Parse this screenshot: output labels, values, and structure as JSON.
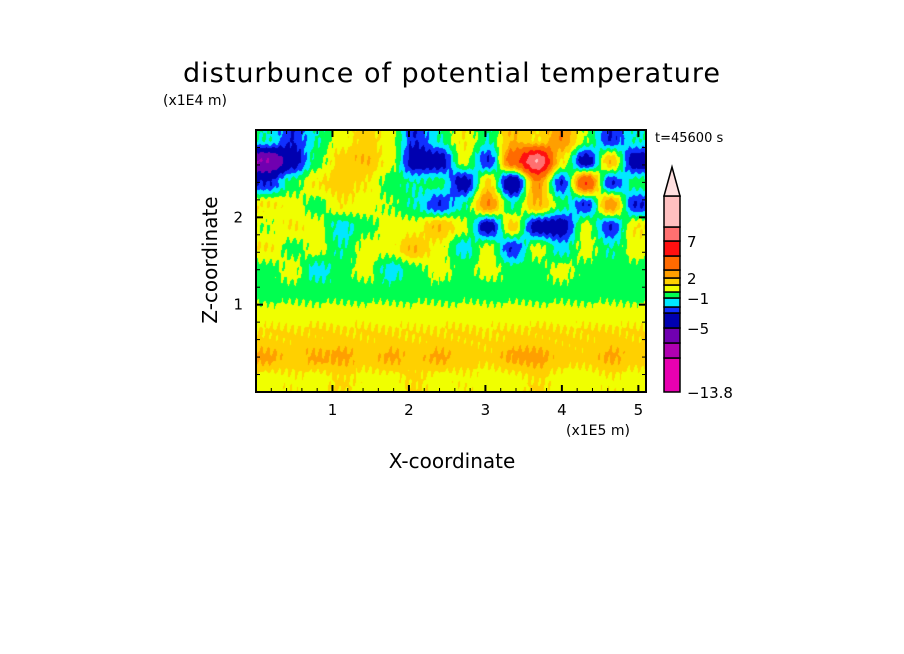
{
  "chart_data": {
    "type": "heatmap",
    "title": "disturbunce of potential temperature",
    "xlabel": "X-coordinate",
    "ylabel": "Z-coordinate",
    "x_unit": "(x1E5 m)",
    "y_unit": "(x1E4 m)",
    "annotation": "t=45600 s",
    "xlim": [
      0,
      5.1
    ],
    "ylim": [
      0,
      3.0
    ],
    "x_ticks": [
      1,
      2,
      3,
      4,
      5
    ],
    "y_ticks": [
      1,
      2
    ],
    "x_tick_labels": [
      "1",
      "2",
      "3",
      "4",
      "5"
    ],
    "y_tick_labels": [
      "1",
      "2"
    ],
    "colorbar": {
      "levels": [
        -13.8,
        -9,
        -7,
        -5,
        -3,
        -2,
        -1,
        0,
        1,
        2,
        3,
        5,
        7,
        9
      ],
      "colors": [
        "#e800b0",
        "#b000b0",
        "#7000b0",
        "#0000b0",
        "#1030ff",
        "#00e8ff",
        "#00ff50",
        "#f0ff00",
        "#ffd000",
        "#ff9f00",
        "#ff6a00",
        "#ff1010",
        "#ff7070",
        "#ffc0c0"
      ],
      "overflow_color": "#ffe0e0",
      "labels": [
        {
          "value": 7,
          "text": "7"
        },
        {
          "value": 2,
          "text": "2"
        },
        {
          "value": -1,
          "text": "−1"
        },
        {
          "value": -5,
          "text": "−5"
        },
        {
          "value": -13.8,
          "text": "−13.8"
        }
      ]
    },
    "grid_x": [
      0.15,
      0.47,
      0.79,
      1.11,
      1.43,
      1.75,
      2.07,
      2.39,
      2.71,
      3.03,
      3.35,
      3.67,
      3.99,
      4.31,
      4.63,
      4.95
    ],
    "grid_z": [
      2.9,
      2.65,
      2.4,
      2.15,
      1.9,
      1.65,
      1.4,
      1.15,
      0.9,
      0.65,
      0.4,
      0.15
    ],
    "z": [
      [
        -1,
        -3,
        -1,
        0.5,
        1.5,
        0.5,
        -3,
        -1,
        1,
        -1,
        2,
        1,
        3,
        0,
        -3,
        -1
      ],
      [
        -7,
        -4,
        -0.5,
        1.5,
        2,
        0.5,
        -4,
        -4,
        0.5,
        -3,
        4,
        9,
        1,
        -4,
        2,
        -4
      ],
      [
        -3,
        -0.5,
        1,
        1.5,
        1,
        -0.5,
        -1,
        -0.5,
        -4,
        1.5,
        -5,
        3,
        -3,
        5,
        -3,
        -0.5
      ],
      [
        1,
        0.5,
        -0.5,
        1,
        0.5,
        0,
        -1,
        -3,
        -1,
        3,
        -1,
        2,
        -0.5,
        -3,
        3,
        -3
      ],
      [
        0,
        1,
        0.5,
        -1.5,
        -0.5,
        0.5,
        0.5,
        2,
        0.5,
        -4,
        1.5,
        -4,
        -4,
        0.5,
        -3,
        1
      ],
      [
        1,
        -0.5,
        0.5,
        -1,
        0.5,
        0.5,
        2,
        0.5,
        -1.5,
        0.5,
        -3,
        0.5,
        -1.5,
        0.5,
        -1,
        0.5
      ],
      [
        -0.5,
        0.5,
        -1.5,
        -0.5,
        0.5,
        -1.5,
        -0.5,
        0.5,
        -0.5,
        0.5,
        -0.5,
        -0.5,
        0.5,
        -0.5,
        -0.5,
        -0.5
      ],
      [
        -0.5,
        -0.5,
        -0.5,
        -0.5,
        -0.5,
        -0.5,
        -0.5,
        -0.5,
        -0.5,
        -0.5,
        -0.5,
        -0.5,
        -0.5,
        -0.5,
        -0.5,
        -0.5
      ],
      [
        0.5,
        0.5,
        0.5,
        0.5,
        0.5,
        0.5,
        0.5,
        0.5,
        0.5,
        0.5,
        0.5,
        0.5,
        0.5,
        0.5,
        0.5,
        0.5
      ],
      [
        1.2,
        1.2,
        1.3,
        1.2,
        1.2,
        1.2,
        1.1,
        1.2,
        1.2,
        1.1,
        1.2,
        1.3,
        1.2,
        1.2,
        1.3,
        1.2
      ],
      [
        2.3,
        1.5,
        2.2,
        2.3,
        1.5,
        2.2,
        1.6,
        2.2,
        1.5,
        1.3,
        2.3,
        2.4,
        1.5,
        1.3,
        2.2,
        1.5
      ],
      [
        0.5,
        0.8,
        0.5,
        1.2,
        0.6,
        0.5,
        1.2,
        0.5,
        0.8,
        0.5,
        0.5,
        1.2,
        0.5,
        0.5,
        0.8,
        0.5
      ]
    ]
  }
}
